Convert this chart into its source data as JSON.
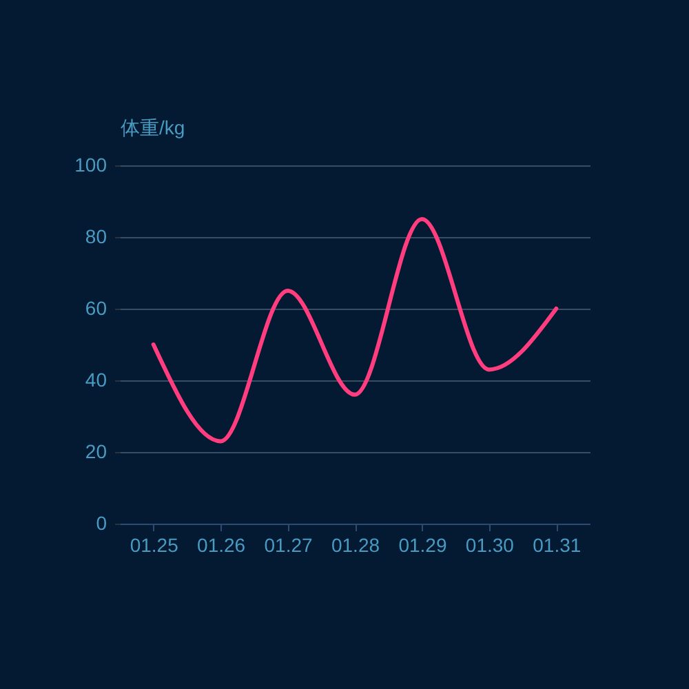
{
  "chart_data": {
    "type": "line",
    "ylabel": "体重/kg",
    "categories": [
      "01.25",
      "01.26",
      "01.27",
      "01.28",
      "01.29",
      "01.30",
      "01.31"
    ],
    "series": [
      {
        "color": "#ff3d7f",
        "values": [
          50,
          23,
          65,
          36,
          85,
          43,
          60
        ]
      }
    ],
    "ylim": [
      0,
      100
    ],
    "yticks": [
      0,
      20,
      40,
      60,
      80,
      100
    ],
    "grid": "y",
    "legend": false,
    "marker": "none",
    "line_style": "solid"
  }
}
